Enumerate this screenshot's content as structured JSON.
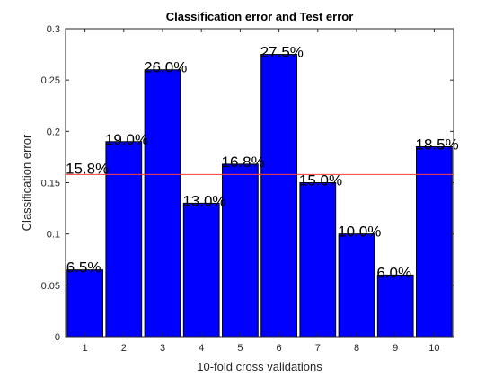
{
  "chart_data": {
    "type": "bar",
    "title": "Classification error and Test error",
    "xlabel": "10-fold cross validations",
    "ylabel": "Classification error",
    "categories": [
      "1",
      "2",
      "3",
      "4",
      "5",
      "6",
      "7",
      "8",
      "9",
      "10"
    ],
    "values": [
      0.065,
      0.19,
      0.26,
      0.13,
      0.168,
      0.275,
      0.15,
      0.1,
      0.06,
      0.185
    ],
    "data_labels": [
      "6.5%",
      "19.0%",
      "26.0%",
      "13.0%",
      "16.8%",
      "27.5%",
      "15.0%",
      "10.0%",
      "6.0%",
      "18.5%"
    ],
    "ylim": [
      0,
      0.3
    ],
    "yticks": [
      0,
      0.05,
      0.1,
      0.15,
      0.2,
      0.25,
      0.3
    ],
    "ytick_labels": [
      "0",
      "0.05",
      "0.1",
      "0.15",
      "0.2",
      "0.25",
      "0.3"
    ],
    "reference_line": {
      "value": 0.158,
      "label": "15.8%",
      "color": "#ff4040"
    },
    "bar_color": "#0000ff",
    "bar_edge_color": "#000000",
    "grid": false
  }
}
